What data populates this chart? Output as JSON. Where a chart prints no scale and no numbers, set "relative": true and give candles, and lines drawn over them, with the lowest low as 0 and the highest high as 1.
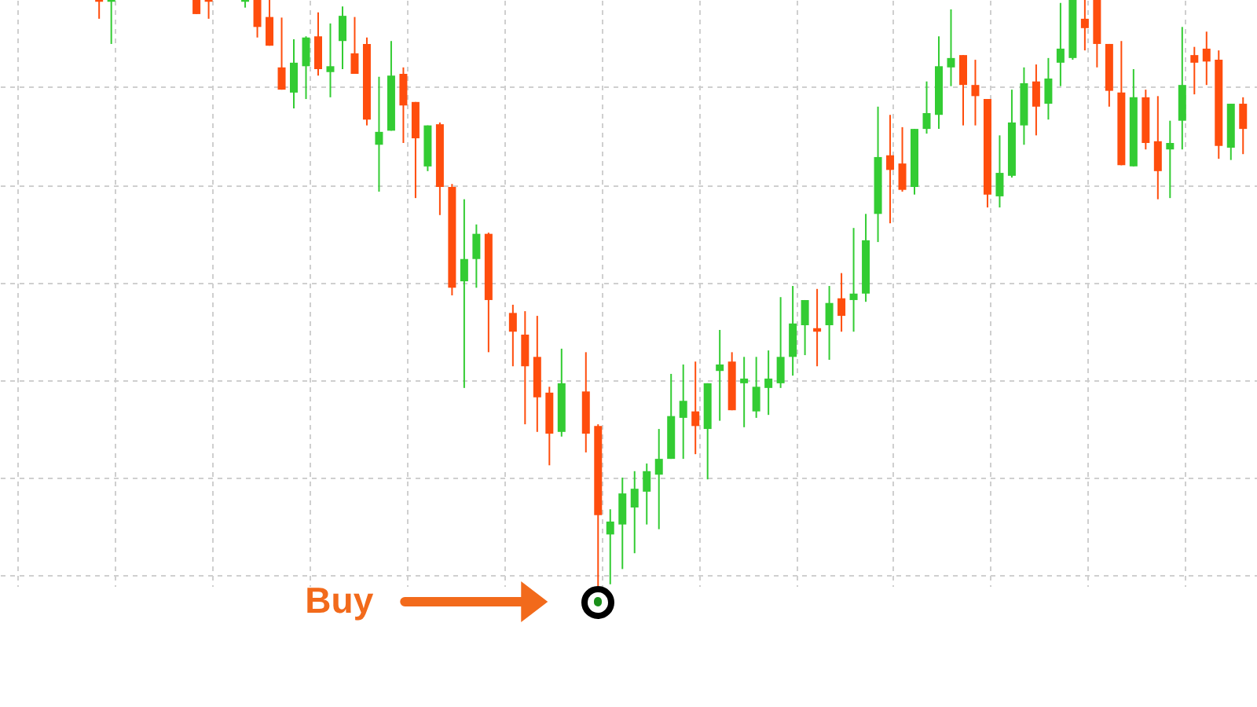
{
  "chart_data": {
    "type": "candlestick",
    "relative": true,
    "grid": true,
    "annotations": [
      "Buy"
    ],
    "categories": [
      null,
      null,
      null,
      null,
      null,
      null,
      null,
      null,
      null,
      null,
      null,
      null,
      null,
      null,
      null,
      null,
      null,
      null,
      null,
      null,
      null,
      null,
      null,
      null,
      null,
      null,
      null,
      null,
      null,
      null,
      null,
      null,
      null,
      null,
      null,
      null,
      null,
      null,
      null,
      null,
      null,
      null,
      null,
      null,
      null,
      null,
      null,
      null,
      null,
      null,
      null,
      null,
      null,
      null,
      null,
      null,
      null,
      null,
      null,
      null,
      null,
      null,
      null,
      null,
      null,
      null,
      null,
      null,
      null,
      null,
      null,
      null,
      null,
      null,
      null,
      null,
      null,
      null,
      null,
      null,
      null,
      null,
      null,
      null,
      null,
      null,
      null,
      null,
      null,
      null,
      null,
      null,
      null,
      null,
      null,
      null,
      null,
      null,
      null,
      null,
      null,
      null
    ],
    "ohlc": [
      null,
      null,
      null,
      null,
      null,
      null,
      null,
      [
        1,
        1,
        0.968,
        0.997
      ],
      [
        0.997,
        1,
        0.925,
        1
      ],
      null,
      null,
      null,
      null,
      null,
      null,
      [
        1,
        1,
        0.976,
        0.976
      ],
      [
        1,
        1,
        0.968,
        0.997
      ],
      null,
      null,
      [
        0.997,
        1,
        0.987,
        1
      ],
      [
        1,
        1,
        0.936,
        0.954
      ],
      [
        0.971,
        1,
        0.922,
        0.922
      ],
      [
        0.885,
        0.97,
        0.847,
        0.847
      ],
      [
        0.842,
        0.933,
        0.815,
        0.893
      ],
      [
        0.887,
        0.938,
        0.831,
        0.936
      ],
      [
        0.938,
        0.979,
        0.871,
        0.882
      ],
      [
        0.877,
        0.96,
        0.834,
        0.887
      ],
      [
        0.93,
        0.989,
        0.882,
        0.973
      ],
      [
        0.909,
        0.971,
        0.874,
        0.874
      ],
      [
        0.925,
        0.936,
        0.786,
        0.796
      ],
      [
        0.753,
        0.869,
        0.673,
        0.775
      ],
      [
        0.777,
        0.93,
        0.777,
        0.871
      ],
      [
        0.874,
        0.885,
        0.756,
        0.82
      ],
      [
        0.826,
        0.826,
        0.662,
        0.764
      ],
      [
        0.716,
        0.786,
        0.708,
        0.786
      ],
      [
        0.788,
        0.791,
        0.633,
        0.681
      ],
      [
        0.681,
        0.686,
        0.496,
        0.509
      ],
      [
        0.52,
        0.66,
        0.338,
        0.558
      ],
      [
        0.558,
        0.617,
        0.509,
        0.601
      ],
      [
        0.601,
        0.603,
        0.399,
        0.488
      ],
      null,
      [
        0.466,
        0.48,
        0.375,
        0.434
      ],
      [
        0.429,
        0.469,
        0.276,
        0.375
      ],
      [
        0.391,
        0.461,
        0.263,
        0.322
      ],
      [
        0.33,
        0.34,
        0.206,
        0.26
      ],
      [
        0.263,
        0.405,
        0.255,
        0.346
      ],
      null,
      [
        0.332,
        0.399,
        0.228,
        0.26
      ],
      [
        0.273,
        0.276,
        0,
        0.121
      ],
      [
        0.088,
        0.131,
        0.003,
        0.11
      ],
      [
        0.105,
        0.185,
        0.029,
        0.158
      ],
      [
        0.134,
        0.196,
        0.056,
        0.166
      ],
      [
        0.161,
        0.209,
        0.105,
        0.196
      ],
      [
        0.19,
        0.268,
        0.097,
        0.217
      ],
      [
        0.217,
        0.362,
        0.217,
        0.29
      ],
      [
        0.287,
        0.378,
        0.217,
        0.316
      ],
      [
        0.298,
        0.383,
        0.225,
        0.273
      ],
      [
        0.268,
        0.346,
        0.182,
        0.346
      ],
      [
        0.367,
        0.437,
        0.282,
        0.378
      ],
      [
        0.383,
        0.399,
        0.3,
        0.3
      ],
      [
        0.346,
        0.391,
        0.271,
        0.354
      ],
      [
        0.298,
        0.391,
        0.287,
        0.34
      ],
      [
        0.338,
        0.402,
        0.292,
        0.354
      ],
      [
        0.346,
        0.493,
        0.338,
        0.391
      ],
      [
        0.391,
        0.512,
        0.359,
        0.448
      ],
      [
        0.445,
        0.488,
        0.394,
        0.488
      ],
      [
        0.44,
        0.507,
        0.375,
        0.434
      ],
      [
        0.445,
        0.512,
        0.386,
        0.483
      ],
      [
        0.491,
        0.534,
        0.434,
        0.461
      ],
      [
        0.488,
        0.611,
        0.434,
        0.499
      ],
      [
        0.499,
        0.635,
        0.485,
        0.59
      ],
      [
        0.635,
        0.818,
        0.587,
        0.732
      ],
      [
        0.735,
        0.804,
        0.619,
        0.71
      ],
      [
        0.721,
        0.783,
        0.673,
        0.676
      ],
      [
        0.681,
        0.78,
        0.668,
        0.78
      ],
      [
        0.78,
        0.861,
        0.772,
        0.807
      ],
      [
        0.804,
        0.938,
        0.78,
        0.887
      ],
      [
        0.885,
        0.984,
        0.853,
        0.901
      ],
      [
        0.906,
        0.906,
        0.786,
        0.855
      ],
      [
        0.855,
        0.898,
        0.786,
        0.836
      ],
      [
        0.831,
        0.831,
        0.646,
        0.668
      ],
      [
        0.665,
        0.769,
        0.646,
        0.705
      ],
      [
        0.7,
        0.847,
        0.697,
        0.791
      ],
      [
        0.786,
        0.885,
        0.753,
        0.858
      ],
      [
        0.861,
        0.89,
        0.769,
        0.818
      ],
      [
        0.823,
        0.901,
        0.796,
        0.866
      ],
      [
        0.893,
        0.995,
        0.853,
        0.917
      ],
      [
        0.901,
        1,
        0.898,
        1
      ],
      [
        0.968,
        1,
        0.914,
        0.952
      ],
      [
        1,
        1,
        0.885,
        0.925
      ],
      [
        0.925,
        0.925,
        0.818,
        0.845
      ],
      [
        0.842,
        0.93,
        0.718,
        0.718
      ],
      [
        0.716,
        0.882,
        0.716,
        0.834
      ],
      [
        0.834,
        0.847,
        0.745,
        0.756
      ],
      [
        0.759,
        0.836,
        0.66,
        0.708
      ],
      [
        0.745,
        0.794,
        0.662,
        0.756
      ],
      [
        0.794,
        0.954,
        0.745,
        0.855
      ],
      [
        0.906,
        0.92,
        0.839,
        0.893
      ],
      [
        0.917,
        0.946,
        0.855,
        0.895
      ],
      [
        0.898,
        0.914,
        0.729,
        0.751
      ],
      [
        0.748,
        0.823,
        0.727,
        0.823
      ],
      [
        0.823,
        0.834,
        0.737,
        0.78
      ]
    ],
    "colors": [
      null,
      null,
      null,
      null,
      null,
      null,
      null,
      "#ff4d0d",
      "#33cc33",
      null,
      null,
      null,
      null,
      null,
      null,
      "#ff4d0d",
      "#ff4d0d",
      null,
      null,
      "#33cc33",
      "#ff4d0d",
      "#ff4d0d",
      "#ff4d0d",
      "#33cc33",
      "#33cc33",
      "#ff4d0d",
      "#33cc33",
      "#33cc33",
      "#ff4d0d",
      "#ff4d0d",
      "#33cc33",
      "#33cc33",
      "#ff4d0d",
      "#ff4d0d",
      "#33cc33",
      "#ff4d0d",
      "#ff4d0d",
      "#33cc33",
      "#33cc33",
      "#ff4d0d",
      null,
      "#ff4d0d",
      "#ff4d0d",
      "#ff4d0d",
      "#ff4d0d",
      "#33cc33",
      null,
      "#ff4d0d",
      "#ff4d0d",
      "#33cc33",
      "#33cc33",
      "#33cc33",
      "#33cc33",
      "#33cc33",
      "#33cc33",
      "#33cc33",
      "#ff4d0d",
      "#33cc33",
      "#33cc33",
      "#ff4d0d",
      "#33cc33",
      "#33cc33",
      "#33cc33",
      "#33cc33",
      "#33cc33",
      "#33cc33",
      "#ff4d0d",
      "#33cc33",
      "#ff4d0d",
      "#33cc33",
      "#33cc33",
      "#33cc33",
      "#ff4d0d",
      "#ff4d0d",
      "#33cc33",
      "#33cc33",
      "#33cc33",
      "#33cc33",
      "#ff4d0d",
      "#ff4d0d",
      "#ff4d0d",
      "#33cc33",
      "#33cc33",
      "#33cc33",
      "#ff4d0d",
      "#33cc33",
      "#33cc33",
      "#33cc33",
      "#ff4d0d",
      "#ff4d0d",
      "#ff4d0d",
      "#ff4d0d",
      "#33cc33",
      "#ff4d0d",
      "#ff4d0d",
      "#33cc33",
      "#33cc33",
      "#ff4d0d",
      "#ff4d0d",
      "#ff4d0d",
      "#33cc33",
      "#ff4d0d"
    ]
  }
}
